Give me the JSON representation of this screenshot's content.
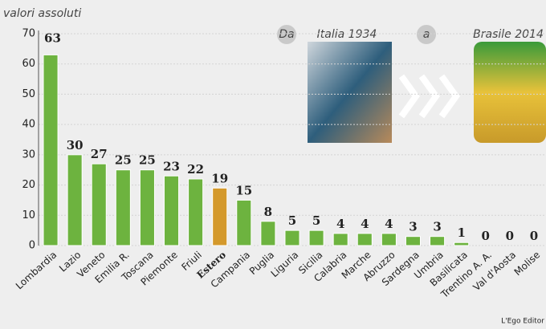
{
  "chart_data": {
    "type": "bar",
    "subtitle": "valori assoluti",
    "categories": [
      "Lombardia",
      "Lazio",
      "Veneto",
      "Emilia R.",
      "Toscana",
      "Piemonte",
      "Friuli",
      "Estero",
      "Campania",
      "Puglia",
      "Liguria",
      "Sicilia",
      "Calabria",
      "Marche",
      "Abruzzo",
      "Sardegna",
      "Umbria",
      "Basilicata",
      "Trentino A. A.",
      "Val d'Aosta",
      "Molise"
    ],
    "values": [
      63,
      30,
      27,
      25,
      25,
      23,
      22,
      19,
      15,
      8,
      5,
      5,
      4,
      4,
      4,
      3,
      3,
      1,
      0,
      0,
      0
    ],
    "color": "#6db33f",
    "colors": [
      "#6db33f",
      "#6db33f",
      "#6db33f",
      "#6db33f",
      "#6db33f",
      "#6db33f",
      "#6db33f",
      "#d4992b",
      "#6db33f",
      "#6db33f",
      "#6db33f",
      "#6db33f",
      "#6db33f",
      "#6db33f",
      "#6db33f",
      "#6db33f",
      "#6db33f",
      "#6db33f",
      "#6db33f",
      "#6db33f",
      "#6db33f"
    ],
    "ylim": [
      0,
      70
    ],
    "yticks": [
      0,
      10,
      20,
      30,
      40,
      50,
      60,
      70
    ],
    "grid": true,
    "annotations": [
      "Da",
      "Italia 1934",
      "a",
      "Brasile 2014"
    ],
    "credit": "L'Ego Editor"
  }
}
